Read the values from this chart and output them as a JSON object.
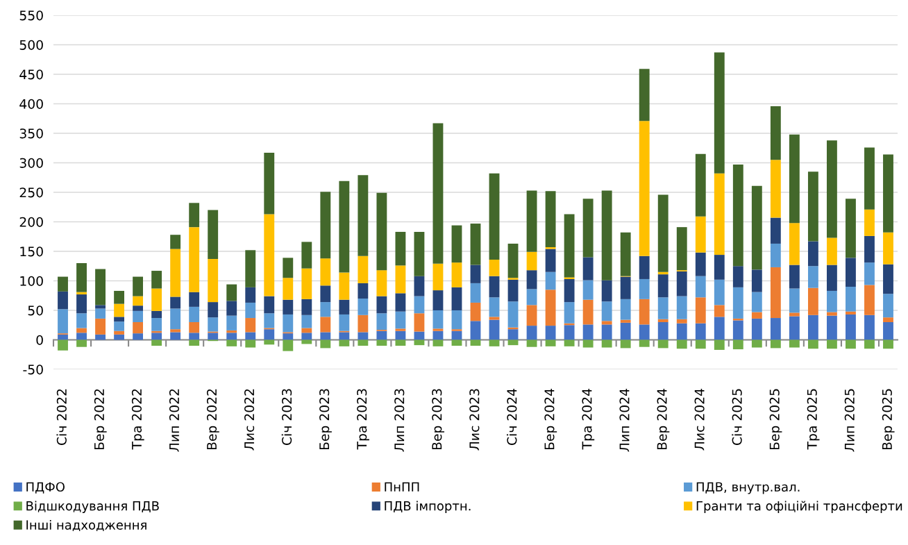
{
  "chart_data": {
    "type": "bar",
    "stacked": true,
    "categories": [
      "Січ 2022",
      null,
      "Бер 2022",
      null,
      "Тра 2022",
      null,
      "Лип 2022",
      null,
      "Вер 2022",
      null,
      "Лис 2022",
      null,
      "Січ 2023",
      null,
      "Бер 2023",
      null,
      "Тра 2023",
      null,
      "Лип 2023",
      null,
      "Вер 2023",
      null,
      "Лис 2023",
      null,
      "Січ 2024",
      null,
      "Бер 2024",
      null,
      "Тра 2024",
      null,
      "Лип 2024",
      null,
      "Вер 2024",
      null,
      "Лис 2024",
      null,
      "Січ 2025",
      null,
      "Бер 2025",
      null,
      "Тра 2025",
      null,
      "Лип 2025",
      null,
      "Вер 2025"
    ],
    "series": [
      {
        "name": "ПДФО",
        "color": "#4472c4",
        "values": [
          9,
          12,
          9,
          9,
          11,
          12,
          13,
          12,
          12,
          12,
          13,
          18,
          11,
          12,
          13,
          13,
          13,
          15,
          15,
          14,
          15,
          15,
          32,
          34,
          18,
          24,
          24,
          25,
          26,
          26,
          29,
          26,
          30,
          28,
          28,
          39,
          33,
          36,
          37,
          40,
          42,
          41,
          43,
          42,
          30
        ]
      },
      {
        "name": "ПнПП",
        "color": "#ed7d31",
        "values": [
          2,
          8,
          27,
          6,
          19,
          3,
          5,
          18,
          2,
          4,
          24,
          2,
          2,
          8,
          26,
          2,
          29,
          2,
          4,
          31,
          4,
          3,
          31,
          5,
          3,
          35,
          61,
          3,
          42,
          6,
          5,
          43,
          5,
          7,
          44,
          20,
          3,
          11,
          86,
          6,
          46,
          6,
          5,
          51,
          8
        ]
      },
      {
        "name": "ПДВ, внутр.вал.",
        "color": "#5b9bd5",
        "values": [
          41,
          25,
          17,
          16,
          19,
          22,
          35,
          26,
          24,
          25,
          26,
          25,
          30,
          22,
          25,
          28,
          28,
          28,
          29,
          29,
          31,
          32,
          33,
          33,
          44,
          27,
          30,
          36,
          33,
          33,
          35,
          34,
          37,
          39,
          36,
          43,
          53,
          34,
          40,
          41,
          37,
          36,
          42,
          38,
          40
        ]
      },
      {
        "name": "Відшкодування ПДВ",
        "color": "#70ad47",
        "values": [
          -18,
          -12,
          0,
          0,
          0,
          -10,
          0,
          -10,
          -2,
          -11,
          -13,
          -8,
          -19,
          -7,
          -14,
          -11,
          -10,
          -10,
          -10,
          -9,
          -11,
          -10,
          -10,
          -11,
          -9,
          -12,
          -11,
          -11,
          -13,
          -13,
          -14,
          -12,
          -14,
          -15,
          -15,
          -17,
          -16,
          -13,
          -14,
          -13,
          -15,
          -15,
          -15,
          -15,
          -15
        ]
      },
      {
        "name": "ПДВ імпортн.",
        "color": "#264478",
        "values": [
          30,
          32,
          6,
          8,
          9,
          12,
          20,
          25,
          26,
          25,
          26,
          29,
          25,
          27,
          28,
          25,
          26,
          29,
          31,
          34,
          34,
          39,
          31,
          36,
          37,
          32,
          39,
          39,
          39,
          36,
          38,
          39,
          39,
          42,
          40,
          42,
          36,
          38,
          44,
          40,
          42,
          44,
          49,
          45,
          50
        ]
      },
      {
        "name": "Гранти та офіційні трансферти",
        "color": "#ffc000",
        "values": [
          0,
          4,
          0,
          22,
          16,
          38,
          81,
          110,
          73,
          0,
          0,
          139,
          37,
          52,
          46,
          46,
          46,
          44,
          47,
          0,
          45,
          42,
          0,
          28,
          3,
          31,
          3,
          3,
          0,
          0,
          1,
          229,
          4,
          2,
          61,
          138,
          0,
          0,
          98,
          71,
          0,
          46,
          0,
          45,
          54
        ]
      },
      {
        "name": "Інші надходження",
        "color": "#43682b",
        "values": [
          25,
          49,
          61,
          22,
          33,
          30,
          24,
          41,
          83,
          28,
          63,
          104,
          34,
          45,
          113,
          155,
          137,
          131,
          57,
          75,
          238,
          63,
          70,
          146,
          58,
          104,
          95,
          107,
          99,
          152,
          74,
          88,
          131,
          73,
          106,
          205,
          172,
          142,
          91,
          150,
          118,
          165,
          100,
          105,
          132
        ]
      }
    ],
    "ylim": [
      -50,
      550
    ],
    "yticks": [
      -50,
      0,
      50,
      100,
      150,
      200,
      250,
      300,
      350,
      400,
      450,
      500,
      550
    ],
    "grid": "y",
    "legend": "bottom"
  }
}
